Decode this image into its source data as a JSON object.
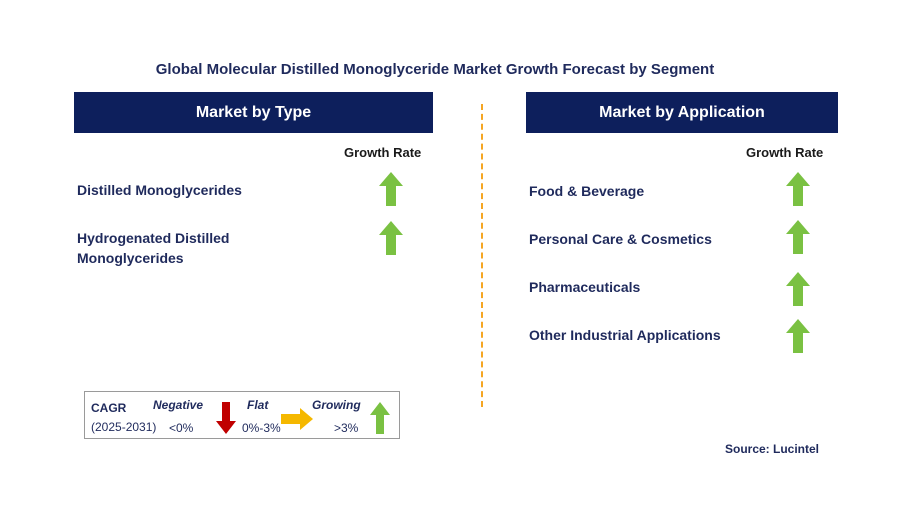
{
  "title": "Global Molecular Distilled Monoglyceride Market Growth Forecast by Segment",
  "left_panel": {
    "header": "Market by Type",
    "growth_label": "Growth Rate",
    "items": [
      {
        "label": "Distilled Monoglycerides",
        "trend": "growing"
      },
      {
        "label": "Hydrogenated Distilled Monoglycerides",
        "trend": "growing"
      }
    ]
  },
  "right_panel": {
    "header": "Market by Application",
    "growth_label": "Growth Rate",
    "items": [
      {
        "label": "Food & Beverage",
        "trend": "growing"
      },
      {
        "label": "Personal Care & Cosmetics",
        "trend": "growing"
      },
      {
        "label": "Pharmaceuticals",
        "trend": "growing"
      },
      {
        "label": "Other Industrial Applications",
        "trend": "growing"
      }
    ]
  },
  "legend": {
    "cagr": "CAGR",
    "period": "(2025-2031)",
    "negative": {
      "label": "Negative",
      "range": "<0%",
      "color": "#c00000"
    },
    "flat": {
      "label": "Flat",
      "range": "0%-3%",
      "color": "#f5b800"
    },
    "growing": {
      "label": "Growing",
      "range": ">3%",
      "color": "#7ac142"
    }
  },
  "source": "Source: Lucintel",
  "colors": {
    "header_bg": "#0d1f5c",
    "title": "#1f2a5c",
    "divider": "#f5a623",
    "arrow_up": "#7ac142"
  }
}
